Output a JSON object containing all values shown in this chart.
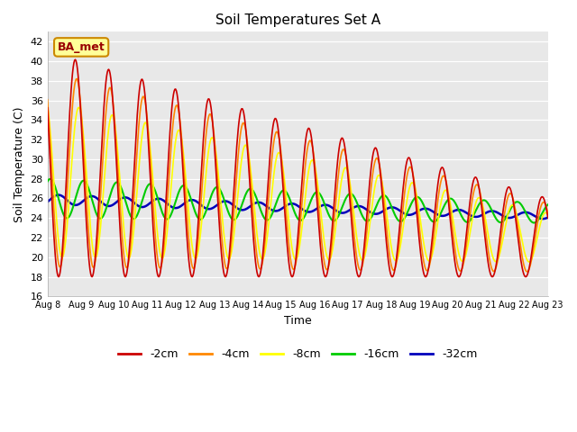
{
  "title": "Soil Temperatures Set A",
  "xlabel": "Time",
  "ylabel": "Soil Temperature (C)",
  "ylim": [
    16,
    43
  ],
  "yticks": [
    16,
    18,
    20,
    22,
    24,
    26,
    28,
    30,
    32,
    34,
    36,
    38,
    40,
    42
  ],
  "x_tick_labels": [
    "Aug 8",
    "Aug 9",
    "Aug 10",
    "Aug 11",
    "Aug 12",
    "Aug 13",
    "Aug 14",
    "Aug 15",
    "Aug 16",
    "Aug 17",
    "Aug 18",
    "Aug 19",
    "Aug 20",
    "Aug 21",
    "Aug 22",
    "Aug 23"
  ],
  "colors": {
    "-2cm": "#cc0000",
    "-4cm": "#ff8800",
    "-8cm": "#ffff00",
    "-16cm": "#00cc00",
    "-32cm": "#0000bb"
  },
  "bg_color": "#e8e8e8",
  "grid_color": "#ffffff",
  "annotation_text": "BA_met",
  "annotation_bg": "#ffff99",
  "annotation_border": "#cc8800",
  "annotation_color": "#990000"
}
